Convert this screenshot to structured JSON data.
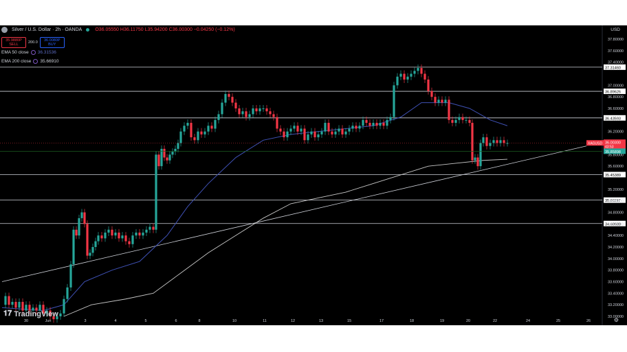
{
  "header": {
    "symbol": "Silver / U.S. Dollar · 2h · OANDA",
    "ohlc": "O36.05550 H36.11750 L35.94200 C36.00300 −0.04250 (−0.12%)"
  },
  "trade": {
    "sell_price": "35.9880P",
    "sell_label": "SELL",
    "spread": "200.0",
    "buy_price": "36.0080P",
    "buy_label": "BUY"
  },
  "indicators": [
    {
      "label": "EMA 50 close",
      "value": "36.31536",
      "color": "#2a3f8f"
    },
    {
      "label": "EMA 200 close",
      "value": "35.66910",
      "color": "#d1d4dc"
    }
  ],
  "currency": "USD",
  "logo": "TradingView",
  "colors": {
    "up": "#26a69a",
    "down": "#f23645",
    "ema50": "#3f51b5",
    "ema200": "#c8c8c8",
    "background": "#000000"
  },
  "chart_data": {
    "type": "candlestick",
    "title": "Silver / U.S. Dollar · 2h · OANDA",
    "ylim": [
      33.0,
      37.8
    ],
    "y_ticks": [
      33.0,
      33.2,
      33.4,
      33.6,
      33.8,
      34.0,
      34.2,
      34.4,
      34.6,
      34.8,
      35.0,
      35.2,
      35.6,
      35.8,
      36.2,
      36.6,
      36.8,
      37.0,
      37.4,
      37.6,
      37.8
    ],
    "x_ticks": [
      "30",
      "Jun",
      "3",
      "4",
      "5",
      "6",
      "8",
      "10",
      "11",
      "12",
      "13",
      "15",
      "17",
      "18",
      "19",
      "20",
      "22",
      "24",
      "25",
      "26"
    ],
    "levels": [
      37.3146,
      36.89626,
      36.43593,
      35.45389,
      35.01197,
      34.60688
    ],
    "level_labels": [
      "37.31460",
      "36.89626",
      "36.43593",
      "35.45389",
      "35.01197",
      "34.60688"
    ],
    "current_price": 36.003,
    "price_tag_symbol": "XAGUSD",
    "price_tag_value": "36.00300",
    "price_tag_countdown": "43:53",
    "ema_tag_value": "35.85898",
    "ema_tag_price": 35.85898,
    "close_path": [
      [
        0,
        33.2
      ],
      [
        5,
        33.35
      ],
      [
        10,
        33.2
      ],
      [
        15,
        33.25
      ],
      [
        20,
        33.15
      ],
      [
        25,
        33.25
      ],
      [
        30,
        33.1
      ],
      [
        35,
        33.2
      ],
      [
        40,
        33.1
      ],
      [
        45,
        33.15
      ],
      [
        50,
        33.1
      ],
      [
        55,
        33.2
      ],
      [
        60,
        33.05
      ],
      [
        65,
        33.1
      ],
      [
        70,
        33.0
      ],
      [
        75,
        32.95
      ],
      [
        80,
        33.0
      ],
      [
        85,
        33.05
      ],
      [
        90,
        33.3
      ],
      [
        95,
        33.5
      ],
      [
        100,
        33.9
      ],
      [
        104,
        34.5
      ],
      [
        108,
        34.4
      ],
      [
        112,
        34.7
      ],
      [
        116,
        34.8
      ],
      [
        120,
        34.6
      ],
      [
        124,
        34.05
      ],
      [
        128,
        34.1
      ],
      [
        132,
        34.2
      ],
      [
        136,
        34.3
      ],
      [
        140,
        34.4
      ],
      [
        145,
        34.35
      ],
      [
        150,
        34.45
      ],
      [
        155,
        34.5
      ],
      [
        160,
        34.4
      ],
      [
        165,
        34.45
      ],
      [
        170,
        34.35
      ],
      [
        175,
        34.4
      ],
      [
        180,
        34.3
      ],
      [
        185,
        34.25
      ],
      [
        190,
        34.4
      ],
      [
        195,
        34.45
      ],
      [
        200,
        34.4
      ],
      [
        205,
        34.45
      ],
      [
        210,
        34.5
      ],
      [
        215,
        34.55
      ],
      [
        220,
        34.5
      ],
      [
        224,
        35.8
      ],
      [
        228,
        35.6
      ],
      [
        232,
        35.9
      ],
      [
        236,
        35.75
      ],
      [
        240,
        35.7
      ],
      [
        244,
        35.8
      ],
      [
        248,
        35.85
      ],
      [
        252,
        35.9
      ],
      [
        256,
        36.0
      ],
      [
        260,
        36.2
      ],
      [
        265,
        36.3
      ],
      [
        270,
        36.35
      ],
      [
        275,
        36.1
      ],
      [
        280,
        36.05
      ],
      [
        285,
        36.2
      ],
      [
        290,
        36.15
      ],
      [
        295,
        36.2
      ],
      [
        300,
        36.3
      ],
      [
        305,
        36.25
      ],
      [
        310,
        36.4
      ],
      [
        315,
        36.5
      ],
      [
        320,
        36.7
      ],
      [
        325,
        36.85
      ],
      [
        330,
        36.8
      ],
      [
        335,
        36.7
      ],
      [
        340,
        36.6
      ],
      [
        345,
        36.5
      ],
      [
        350,
        36.55
      ],
      [
        355,
        36.45
      ],
      [
        360,
        36.5
      ],
      [
        365,
        36.6
      ],
      [
        370,
        36.55
      ],
      [
        375,
        36.6
      ],
      [
        380,
        36.6
      ],
      [
        385,
        36.55
      ],
      [
        390,
        36.5
      ],
      [
        395,
        36.45
      ],
      [
        400,
        36.25
      ],
      [
        405,
        36.2
      ],
      [
        410,
        36.1
      ],
      [
        415,
        36.2
      ],
      [
        420,
        36.25
      ],
      [
        425,
        36.3
      ],
      [
        430,
        36.2
      ],
      [
        435,
        36.25
      ],
      [
        440,
        36.05
      ],
      [
        445,
        36.15
      ],
      [
        450,
        36.2
      ],
      [
        455,
        36.1
      ],
      [
        460,
        36.15
      ],
      [
        465,
        36.2
      ],
      [
        470,
        36.35
      ],
      [
        475,
        36.2
      ],
      [
        480,
        36.15
      ],
      [
        485,
        36.2
      ],
      [
        490,
        36.25
      ],
      [
        495,
        36.15
      ],
      [
        500,
        36.2
      ],
      [
        505,
        36.25
      ],
      [
        510,
        36.3
      ],
      [
        515,
        36.25
      ],
      [
        520,
        36.3
      ],
      [
        525,
        36.4
      ],
      [
        530,
        36.35
      ],
      [
        535,
        36.3
      ],
      [
        540,
        36.35
      ],
      [
        545,
        36.3
      ],
      [
        550,
        36.35
      ],
      [
        555,
        36.3
      ],
      [
        560,
        36.4
      ],
      [
        565,
        36.45
      ],
      [
        570,
        37.0
      ],
      [
        575,
        37.15
      ],
      [
        580,
        37.2
      ],
      [
        585,
        37.1
      ],
      [
        590,
        37.15
      ],
      [
        595,
        37.2
      ],
      [
        600,
        37.25
      ],
      [
        605,
        37.3
      ],
      [
        610,
        37.2
      ],
      [
        615,
        37.1
      ],
      [
        620,
        36.9
      ],
      [
        625,
        36.8
      ],
      [
        630,
        36.7
      ],
      [
        635,
        36.75
      ],
      [
        640,
        36.7
      ],
      [
        645,
        36.75
      ],
      [
        650,
        36.4
      ],
      [
        655,
        36.35
      ],
      [
        660,
        36.4
      ],
      [
        665,
        36.45
      ],
      [
        670,
        36.4
      ],
      [
        675,
        36.4
      ],
      [
        680,
        36.35
      ],
      [
        684,
        35.7
      ],
      [
        688,
        35.75
      ],
      [
        692,
        35.6
      ],
      [
        696,
        36.0
      ],
      [
        700,
        36.1
      ],
      [
        705,
        35.95
      ],
      [
        710,
        36.0
      ],
      [
        715,
        36.05
      ],
      [
        720,
        36.0
      ],
      [
        725,
        36.05
      ],
      [
        730,
        36.0
      ],
      [
        735,
        36.0
      ]
    ],
    "ema50_path": [
      [
        0,
        33.15
      ],
      [
        60,
        33.1
      ],
      [
        90,
        33.2
      ],
      [
        120,
        33.6
      ],
      [
        160,
        33.8
      ],
      [
        200,
        33.95
      ],
      [
        240,
        34.4
      ],
      [
        270,
        34.9
      ],
      [
        300,
        35.3
      ],
      [
        340,
        35.75
      ],
      [
        380,
        36.05
      ],
      [
        420,
        36.15
      ],
      [
        460,
        36.2
      ],
      [
        500,
        36.25
      ],
      [
        540,
        36.3
      ],
      [
        580,
        36.45
      ],
      [
        610,
        36.7
      ],
      [
        650,
        36.7
      ],
      [
        680,
        36.6
      ],
      [
        710,
        36.4
      ],
      [
        735,
        36.3
      ]
    ],
    "ema200_path": [
      [
        90,
        33.0
      ],
      [
        130,
        33.2
      ],
      [
        180,
        33.3
      ],
      [
        220,
        33.4
      ],
      [
        260,
        33.75
      ],
      [
        300,
        34.1
      ],
      [
        340,
        34.4
      ],
      [
        380,
        34.7
      ],
      [
        420,
        34.95
      ],
      [
        460,
        35.05
      ],
      [
        500,
        35.15
      ],
      [
        540,
        35.3
      ],
      [
        580,
        35.45
      ],
      [
        620,
        35.6
      ],
      [
        660,
        35.65
      ],
      [
        700,
        35.7
      ],
      [
        735,
        35.72
      ]
    ],
    "trendline": [
      [
        0,
        33.6
      ],
      [
        850,
        35.95
      ]
    ]
  }
}
